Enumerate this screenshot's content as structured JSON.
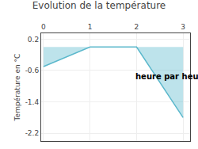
{
  "chart_data": {
    "type": "line",
    "title": "Evolution de la température",
    "ylabel": "Température en °C",
    "annotations": [
      "heure par heure"
    ],
    "x": [
      0,
      1,
      2,
      3
    ],
    "values": [
      -0.5,
      0.0,
      0.0,
      -1.8
    ],
    "color": "#5bb8cc",
    "xlim": [
      -0.05,
      3.15
    ],
    "ylim": [
      -2.4,
      0.35
    ],
    "xticks": [
      0,
      1,
      2,
      3
    ],
    "yticks": [
      0.2,
      -0.6,
      -1.4,
      -2.2
    ],
    "grid": true
  }
}
